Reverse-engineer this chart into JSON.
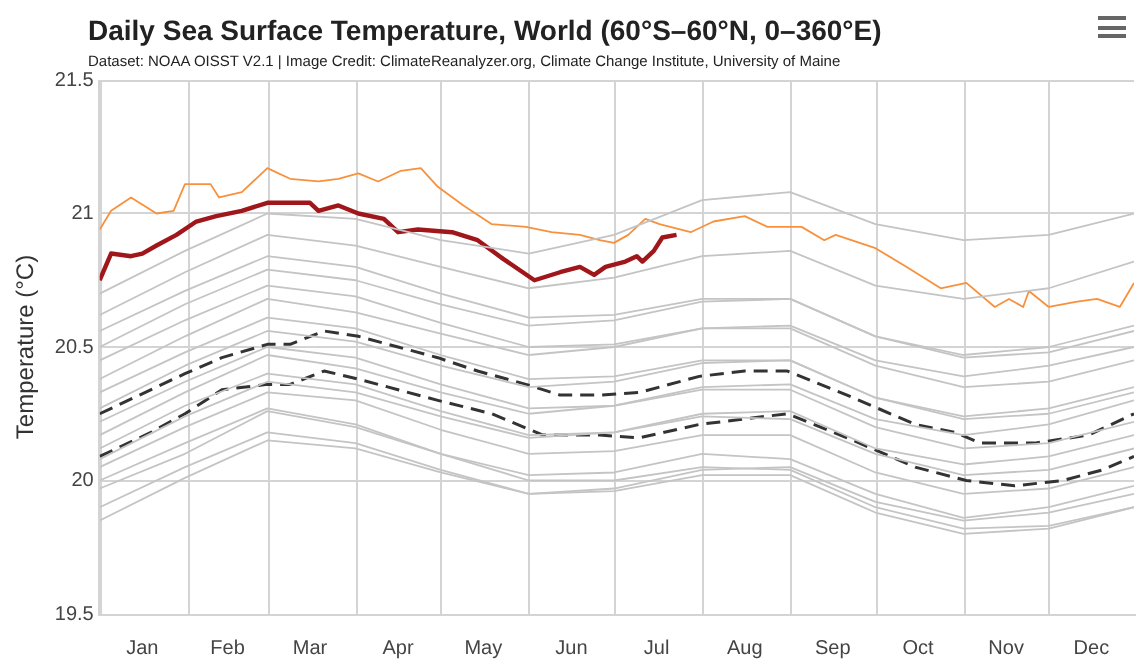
{
  "chart_data": {
    "type": "line",
    "title": "Daily Sea Surface Temperature, World (60°S–60°N, 0–360°E)",
    "subtitle": "Dataset: NOAA OISST V2.1 | Image Credit: ClimateReanalyzer.org, Climate Change Institute, University of Maine",
    "ylabel": "Temperature (°C)",
    "x": [
      "--01-01",
      "--01-31",
      "--03-01",
      "--04-01",
      "--05-01",
      "--06-01",
      "--07-01",
      "--08-01",
      "--09-01",
      "--10-01",
      "--11-01",
      "--12-01",
      "--12-31"
    ],
    "xlim": [
      "--01-01",
      "--12-31"
    ],
    "xticks": [
      {
        "value": "--01-01",
        "label": null
      },
      {
        "value": "--01-16",
        "label": "Jan"
      },
      {
        "value": "--02-01",
        "label": null
      },
      {
        "value": "--02-15",
        "label": "Feb"
      },
      {
        "value": "--03-01",
        "label": null
      },
      {
        "value": "--03-16",
        "label": "Mar"
      },
      {
        "value": "--04-01",
        "label": null
      },
      {
        "value": "--04-16",
        "label": "Apr"
      },
      {
        "value": "--05-01",
        "label": null
      },
      {
        "value": "--05-16",
        "label": "May"
      },
      {
        "value": "--06-01",
        "label": null
      },
      {
        "value": "--06-16",
        "label": "Jun"
      },
      {
        "value": "--07-01",
        "label": null
      },
      {
        "value": "--07-16",
        "label": "Jul"
      },
      {
        "value": "--08-01",
        "label": null
      },
      {
        "value": "--08-16",
        "label": "Aug"
      },
      {
        "value": "--09-01",
        "label": null
      },
      {
        "value": "--09-16",
        "label": "Sep"
      },
      {
        "value": "--10-01",
        "label": null
      },
      {
        "value": "--10-16",
        "label": "Oct"
      },
      {
        "value": "--11-01",
        "label": null
      },
      {
        "value": "--11-16",
        "label": "Nov"
      },
      {
        "value": "--12-01",
        "label": null
      },
      {
        "value": "--12-16",
        "label": "Dec"
      }
    ],
    "ylim": [
      19.5,
      21.5
    ],
    "yticks": [
      19.5,
      20,
      20.5,
      21,
      21.5
    ],
    "grid": true,
    "legend": false,
    "marker": "none",
    "line_style": "solid",
    "series": [
      {
        "color": "#c4c4c4",
        "values": [
          19.85,
          20.01,
          20.15,
          20.12,
          20.03,
          19.95,
          19.97,
          20.04,
          20.05,
          19.92,
          19.85,
          19.88,
          19.95
        ]
      },
      {
        "color": "#c4c4c4",
        "values": [
          19.9,
          20.05,
          20.18,
          20.14,
          20.04,
          19.95,
          19.96,
          20.02,
          20.02,
          19.88,
          19.8,
          19.82,
          19.9
        ]
      },
      {
        "color": "#c4c4c4",
        "values": [
          19.97,
          20.1,
          20.26,
          20.2,
          20.1,
          20.02,
          20.03,
          20.1,
          20.08,
          19.95,
          19.86,
          19.9,
          19.98
        ]
      },
      {
        "color": "#c4c4c4",
        "values": [
          20.0,
          20.14,
          20.27,
          20.21,
          20.1,
          20.0,
          20.0,
          20.05,
          20.04,
          19.9,
          19.82,
          19.83,
          19.9
        ]
      },
      {
        "color": "#c4c4c4",
        "values": [
          20.05,
          20.2,
          20.33,
          20.3,
          20.19,
          20.1,
          20.11,
          20.17,
          20.17,
          20.03,
          19.95,
          19.97,
          20.05
        ]
      },
      {
        "color": "#c4c4c4",
        "values": [
          20.08,
          20.24,
          20.37,
          20.33,
          20.24,
          20.16,
          20.18,
          20.25,
          20.26,
          20.12,
          20.06,
          20.09,
          20.17
        ]
      },
      {
        "color": "#c4c4c4",
        "values": [
          20.12,
          20.28,
          20.4,
          20.36,
          20.26,
          20.17,
          20.18,
          20.24,
          20.23,
          20.1,
          20.02,
          20.04,
          20.12
        ]
      },
      {
        "color": "#c4c4c4",
        "values": [
          20.17,
          20.33,
          20.47,
          20.42,
          20.33,
          20.25,
          20.28,
          20.35,
          20.36,
          20.23,
          20.17,
          20.21,
          20.3
        ]
      },
      {
        "color": "#c4c4c4",
        "values": [
          20.22,
          20.37,
          20.5,
          20.46,
          20.36,
          20.27,
          20.28,
          20.34,
          20.34,
          20.2,
          20.12,
          20.14,
          20.22
        ]
      },
      {
        "color": "#c4c4c4",
        "values": [
          20.27,
          20.43,
          20.56,
          20.52,
          20.43,
          20.35,
          20.37,
          20.44,
          20.45,
          20.31,
          20.24,
          20.27,
          20.35
        ]
      },
      {
        "color": "#c4c4c4",
        "values": [
          20.33,
          20.48,
          20.61,
          20.57,
          20.47,
          20.38,
          20.39,
          20.45,
          20.45,
          20.31,
          20.23,
          20.25,
          20.33
        ]
      },
      {
        "color": "#c4c4c4",
        "values": [
          20.38,
          20.54,
          20.68,
          20.63,
          20.55,
          20.47,
          20.5,
          20.57,
          20.58,
          20.45,
          20.39,
          20.43,
          20.5
        ]
      },
      {
        "color": "#c4c4c4",
        "values": [
          20.45,
          20.6,
          20.73,
          20.69,
          20.59,
          20.5,
          20.51,
          20.57,
          20.57,
          20.43,
          20.35,
          20.37,
          20.45
        ]
      },
      {
        "color": "#c4c4c4",
        "values": [
          20.5,
          20.66,
          20.79,
          20.75,
          20.66,
          20.58,
          20.6,
          20.67,
          20.68,
          20.54,
          20.47,
          20.5,
          20.58
        ]
      },
      {
        "color": "#c4c4c4",
        "values": [
          20.56,
          20.71,
          20.84,
          20.8,
          20.7,
          20.61,
          20.62,
          20.68,
          20.68,
          20.54,
          20.46,
          20.48,
          20.56
        ]
      },
      {
        "color": "#c4c4c4",
        "values": [
          20.62,
          20.78,
          20.92,
          20.88,
          20.8,
          20.72,
          20.76,
          20.84,
          20.86,
          20.73,
          20.68,
          20.72,
          20.82
        ]
      },
      {
        "color": "#c4c4c4",
        "values": [
          20.7,
          20.86,
          21.0,
          20.98,
          20.9,
          20.85,
          20.92,
          21.05,
          21.08,
          20.96,
          20.9,
          20.92,
          21.0
        ]
      },
      {
        "color": "#333333",
        "line_style": "dashed",
        "x": [
          "--01-01",
          "--01-31",
          "--02-13",
          "--03-01",
          "--03-09",
          "--03-21",
          "--04-02",
          "--04-16",
          "--04-30",
          "--05-14",
          "--05-31",
          "--06-12",
          "--06-26",
          "--07-10",
          "--07-31",
          "--08-16",
          "--08-31",
          "--09-21",
          "--10-15",
          "--10-29",
          "--11-07",
          "--11-26",
          "--12-15",
          "--12-31"
        ],
        "values": [
          20.25,
          20.4,
          20.46,
          20.51,
          20.51,
          20.56,
          20.54,
          20.5,
          20.46,
          20.41,
          20.36,
          20.32,
          20.32,
          20.33,
          20.39,
          20.41,
          20.41,
          20.32,
          20.21,
          20.18,
          20.14,
          20.14,
          20.17,
          20.25
        ]
      },
      {
        "color": "#333333",
        "line_style": "dashed",
        "x": [
          "--01-01",
          "--01-19",
          "--01-31",
          "--02-13",
          "--03-01",
          "--03-09",
          "--03-21",
          "--04-02",
          "--04-16",
          "--04-30",
          "--05-19",
          "--06-06",
          "--06-26",
          "--07-10",
          "--07-31",
          "--08-31",
          "--09-21",
          "--10-15",
          "--11-02",
          "--11-19",
          "--12-06",
          "--12-20",
          "--12-31"
        ],
        "values": [
          20.09,
          20.18,
          20.25,
          20.34,
          20.36,
          20.36,
          20.41,
          20.38,
          20.34,
          20.3,
          20.25,
          20.17,
          20.17,
          20.16,
          20.21,
          20.25,
          20.16,
          20.05,
          20.0,
          19.98,
          20.0,
          20.04,
          20.09
        ]
      },
      {
        "color": "#f7913d",
        "x": [
          "--01-01",
          "--01-05",
          "--01-12",
          "--01-21",
          "--01-27",
          "--01-31",
          "--02-09",
          "--02-12",
          "--02-20",
          "--03-01",
          "--03-09",
          "--03-19",
          "--03-26",
          "--04-02",
          "--04-09",
          "--04-17",
          "--04-24",
          "--04-30",
          "--05-09",
          "--05-19",
          "--05-31",
          "--06-09",
          "--06-19",
          "--06-26",
          "--07-01",
          "--07-06",
          "--07-12",
          "--07-17",
          "--07-28",
          "--08-05",
          "--08-16",
          "--08-24",
          "--09-05",
          "--09-13",
          "--09-17",
          "--10-01",
          "--10-12",
          "--10-24",
          "--11-02",
          "--11-12",
          "--11-17",
          "--11-22",
          "--11-24",
          "--12-01",
          "--12-11",
          "--12-18",
          "--12-26",
          "--12-31"
        ],
        "values": [
          20.94,
          21.01,
          21.06,
          21.0,
          21.01,
          21.11,
          21.11,
          21.06,
          21.08,
          21.17,
          21.13,
          21.12,
          21.13,
          21.15,
          21.12,
          21.16,
          21.17,
          21.1,
          21.03,
          20.96,
          20.95,
          20.93,
          20.92,
          20.9,
          20.89,
          20.92,
          20.98,
          20.96,
          20.93,
          20.97,
          20.99,
          20.95,
          20.95,
          20.9,
          20.92,
          20.87,
          20.8,
          20.72,
          20.74,
          20.65,
          20.68,
          20.65,
          20.71,
          20.65,
          20.67,
          20.68,
          20.65,
          20.74
        ]
      },
      {
        "color": "#a0171b",
        "x": [
          "--01-01",
          "--01-05",
          "--01-12",
          "--01-16",
          "--01-21",
          "--01-28",
          "--02-04",
          "--02-11",
          "--02-20",
          "--03-01",
          "--03-09",
          "--03-16",
          "--03-19",
          "--03-26",
          "--04-02",
          "--04-11",
          "--04-16",
          "--04-23",
          "--05-05",
          "--05-14",
          "--05-23",
          "--06-03",
          "--06-12",
          "--06-19",
          "--06-24",
          "--06-28",
          "--07-05",
          "--07-09",
          "--07-11",
          "--07-15",
          "--07-18",
          "--07-23"
        ],
        "values": [
          20.75,
          20.85,
          20.84,
          20.85,
          20.88,
          20.92,
          20.97,
          20.99,
          21.01,
          21.04,
          21.04,
          21.04,
          21.01,
          21.03,
          21.0,
          20.98,
          20.93,
          20.94,
          20.93,
          20.9,
          20.83,
          20.75,
          20.78,
          20.8,
          20.77,
          20.8,
          20.82,
          20.84,
          20.82,
          20.86,
          20.91,
          20.92
        ]
      }
    ]
  }
}
